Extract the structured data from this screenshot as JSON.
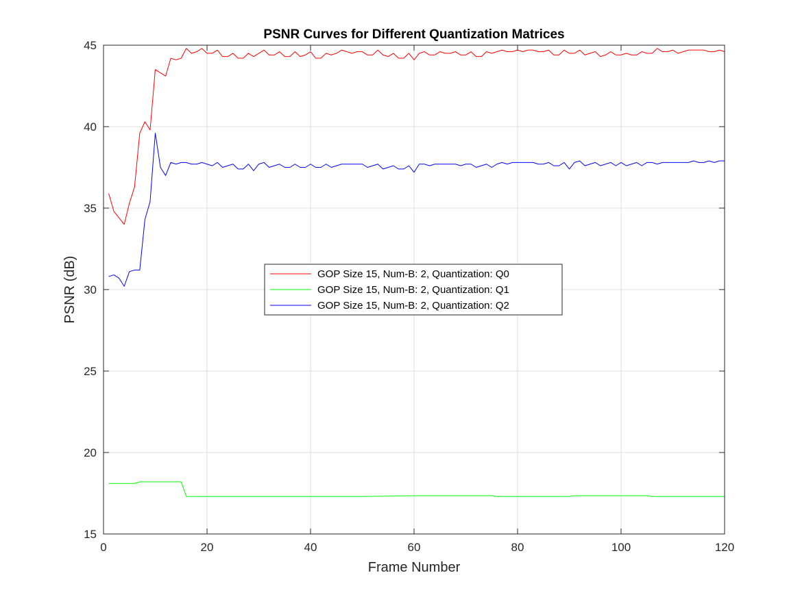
{
  "chart_data": {
    "type": "line",
    "title": "PSNR Curves for Different Quantization Matrices",
    "xlabel": "Frame Number",
    "ylabel": "PSNR (dB)",
    "xlim": [
      0,
      120
    ],
    "ylim": [
      15,
      45
    ],
    "xticks": [
      0,
      20,
      40,
      60,
      80,
      100,
      120
    ],
    "yticks": [
      15,
      20,
      25,
      30,
      35,
      40,
      45
    ],
    "grid": true,
    "legend_position": "center",
    "series": [
      {
        "name": "GOP Size 15, Num-B: 2, Quantization: Q0",
        "color": "#ff0000",
        "x": [
          1,
          2,
          3,
          4,
          5,
          6,
          7,
          8,
          9,
          10,
          11,
          12,
          13,
          14,
          15,
          16,
          17,
          18,
          19,
          20,
          21,
          22,
          23,
          24,
          25,
          26,
          27,
          28,
          29,
          30,
          31,
          32,
          33,
          34,
          35,
          36,
          37,
          38,
          39,
          40,
          41,
          42,
          43,
          44,
          45,
          46,
          47,
          48,
          49,
          50,
          51,
          52,
          53,
          54,
          55,
          56,
          57,
          58,
          59,
          60,
          61,
          62,
          63,
          64,
          65,
          66,
          67,
          68,
          69,
          70,
          71,
          72,
          73,
          74,
          75,
          76,
          77,
          78,
          79,
          80,
          81,
          82,
          83,
          84,
          85,
          86,
          87,
          88,
          89,
          90,
          91,
          92,
          93,
          94,
          95,
          96,
          97,
          98,
          99,
          100,
          101,
          102,
          103,
          104,
          105,
          106,
          107,
          108,
          109,
          110,
          111,
          112,
          113,
          114,
          115,
          116,
          117,
          118,
          119,
          120
        ],
        "values": [
          35.9,
          34.8,
          34.4,
          34.0,
          35.3,
          36.3,
          39.6,
          40.3,
          39.8,
          43.5,
          43.3,
          43.1,
          44.2,
          44.1,
          44.2,
          44.8,
          44.5,
          44.6,
          44.8,
          44.5,
          44.5,
          44.7,
          44.3,
          44.3,
          44.5,
          44.2,
          44.2,
          44.5,
          44.3,
          44.5,
          44.7,
          44.4,
          44.4,
          44.6,
          44.3,
          44.3,
          44.6,
          44.3,
          44.4,
          44.6,
          44.2,
          44.2,
          44.5,
          44.4,
          44.5,
          44.7,
          44.6,
          44.5,
          44.6,
          44.6,
          44.4,
          44.4,
          44.7,
          44.4,
          44.3,
          44.5,
          44.2,
          44.2,
          44.5,
          44.1,
          44.5,
          44.6,
          44.4,
          44.4,
          44.6,
          44.5,
          44.5,
          44.6,
          44.4,
          44.4,
          44.6,
          44.3,
          44.3,
          44.6,
          44.5,
          44.6,
          44.7,
          44.6,
          44.6,
          44.7,
          44.6,
          44.7,
          44.7,
          44.6,
          44.6,
          44.7,
          44.4,
          44.4,
          44.7,
          44.5,
          44.5,
          44.7,
          44.4,
          44.5,
          44.6,
          44.3,
          44.4,
          44.6,
          44.4,
          44.4,
          44.5,
          44.4,
          44.4,
          44.6,
          44.5,
          44.5,
          44.8,
          44.6,
          44.6,
          44.7,
          44.5,
          44.6,
          44.7,
          44.7,
          44.7,
          44.7,
          44.6,
          44.6,
          44.7,
          44.6
        ],
        "marker": "none"
      },
      {
        "name": "GOP Size 15, Num-B: 2, Quantization: Q1",
        "color": "#00ff00",
        "x": [
          1,
          2,
          3,
          4,
          5,
          6,
          7,
          8,
          9,
          10,
          11,
          12,
          13,
          14,
          15,
          16,
          17,
          18,
          19,
          20,
          30,
          40,
          50,
          60,
          65,
          70,
          75,
          76,
          80,
          90,
          91,
          100,
          105,
          106,
          110,
          120
        ],
        "values": [
          18.1,
          18.1,
          18.1,
          18.1,
          18.1,
          18.1,
          18.2,
          18.2,
          18.2,
          18.2,
          18.2,
          18.2,
          18.2,
          18.2,
          18.2,
          17.3,
          17.3,
          17.3,
          17.3,
          17.3,
          17.3,
          17.3,
          17.3,
          17.35,
          17.35,
          17.35,
          17.35,
          17.3,
          17.3,
          17.3,
          17.35,
          17.35,
          17.35,
          17.3,
          17.3,
          17.3
        ],
        "marker": "none"
      },
      {
        "name": "GOP Size 15, Num-B: 2, Quantization: Q2",
        "color": "#0000ff",
        "x": [
          1,
          2,
          3,
          4,
          5,
          6,
          7,
          8,
          9,
          10,
          11,
          12,
          13,
          14,
          15,
          16,
          17,
          18,
          19,
          20,
          21,
          22,
          23,
          24,
          25,
          26,
          27,
          28,
          29,
          30,
          31,
          32,
          33,
          34,
          35,
          36,
          37,
          38,
          39,
          40,
          41,
          42,
          43,
          44,
          45,
          46,
          47,
          48,
          49,
          50,
          51,
          52,
          53,
          54,
          55,
          56,
          57,
          58,
          59,
          60,
          61,
          62,
          63,
          64,
          65,
          66,
          67,
          68,
          69,
          70,
          71,
          72,
          73,
          74,
          75,
          76,
          77,
          78,
          79,
          80,
          81,
          82,
          83,
          84,
          85,
          86,
          87,
          88,
          89,
          90,
          91,
          92,
          93,
          94,
          95,
          96,
          97,
          98,
          99,
          100,
          101,
          102,
          103,
          104,
          105,
          106,
          107,
          108,
          109,
          110,
          111,
          112,
          113,
          114,
          115,
          116,
          117,
          118,
          119,
          120
        ],
        "values": [
          30.8,
          30.9,
          30.7,
          30.2,
          31.1,
          31.2,
          31.2,
          34.3,
          35.4,
          39.6,
          37.5,
          37.0,
          37.8,
          37.7,
          37.8,
          37.8,
          37.7,
          37.7,
          37.8,
          37.7,
          37.6,
          37.8,
          37.5,
          37.6,
          37.7,
          37.4,
          37.4,
          37.7,
          37.3,
          37.7,
          37.8,
          37.5,
          37.6,
          37.7,
          37.5,
          37.5,
          37.7,
          37.5,
          37.5,
          37.7,
          37.5,
          37.5,
          37.7,
          37.5,
          37.6,
          37.7,
          37.7,
          37.7,
          37.7,
          37.7,
          37.5,
          37.6,
          37.7,
          37.4,
          37.5,
          37.6,
          37.4,
          37.4,
          37.6,
          37.2,
          37.7,
          37.7,
          37.6,
          37.7,
          37.7,
          37.7,
          37.7,
          37.7,
          37.6,
          37.7,
          37.7,
          37.5,
          37.6,
          37.7,
          37.5,
          37.7,
          37.8,
          37.7,
          37.8,
          37.8,
          37.8,
          37.8,
          37.8,
          37.7,
          37.7,
          37.8,
          37.6,
          37.6,
          37.8,
          37.4,
          37.8,
          37.9,
          37.6,
          37.7,
          37.8,
          37.6,
          37.7,
          37.8,
          37.6,
          37.8,
          37.6,
          37.7,
          37.8,
          37.6,
          37.8,
          37.8,
          37.7,
          37.8,
          37.8,
          37.8,
          37.8,
          37.8,
          37.8,
          37.9,
          37.8,
          37.8,
          37.9,
          37.8,
          37.9,
          37.9
        ],
        "marker": "none"
      }
    ]
  }
}
